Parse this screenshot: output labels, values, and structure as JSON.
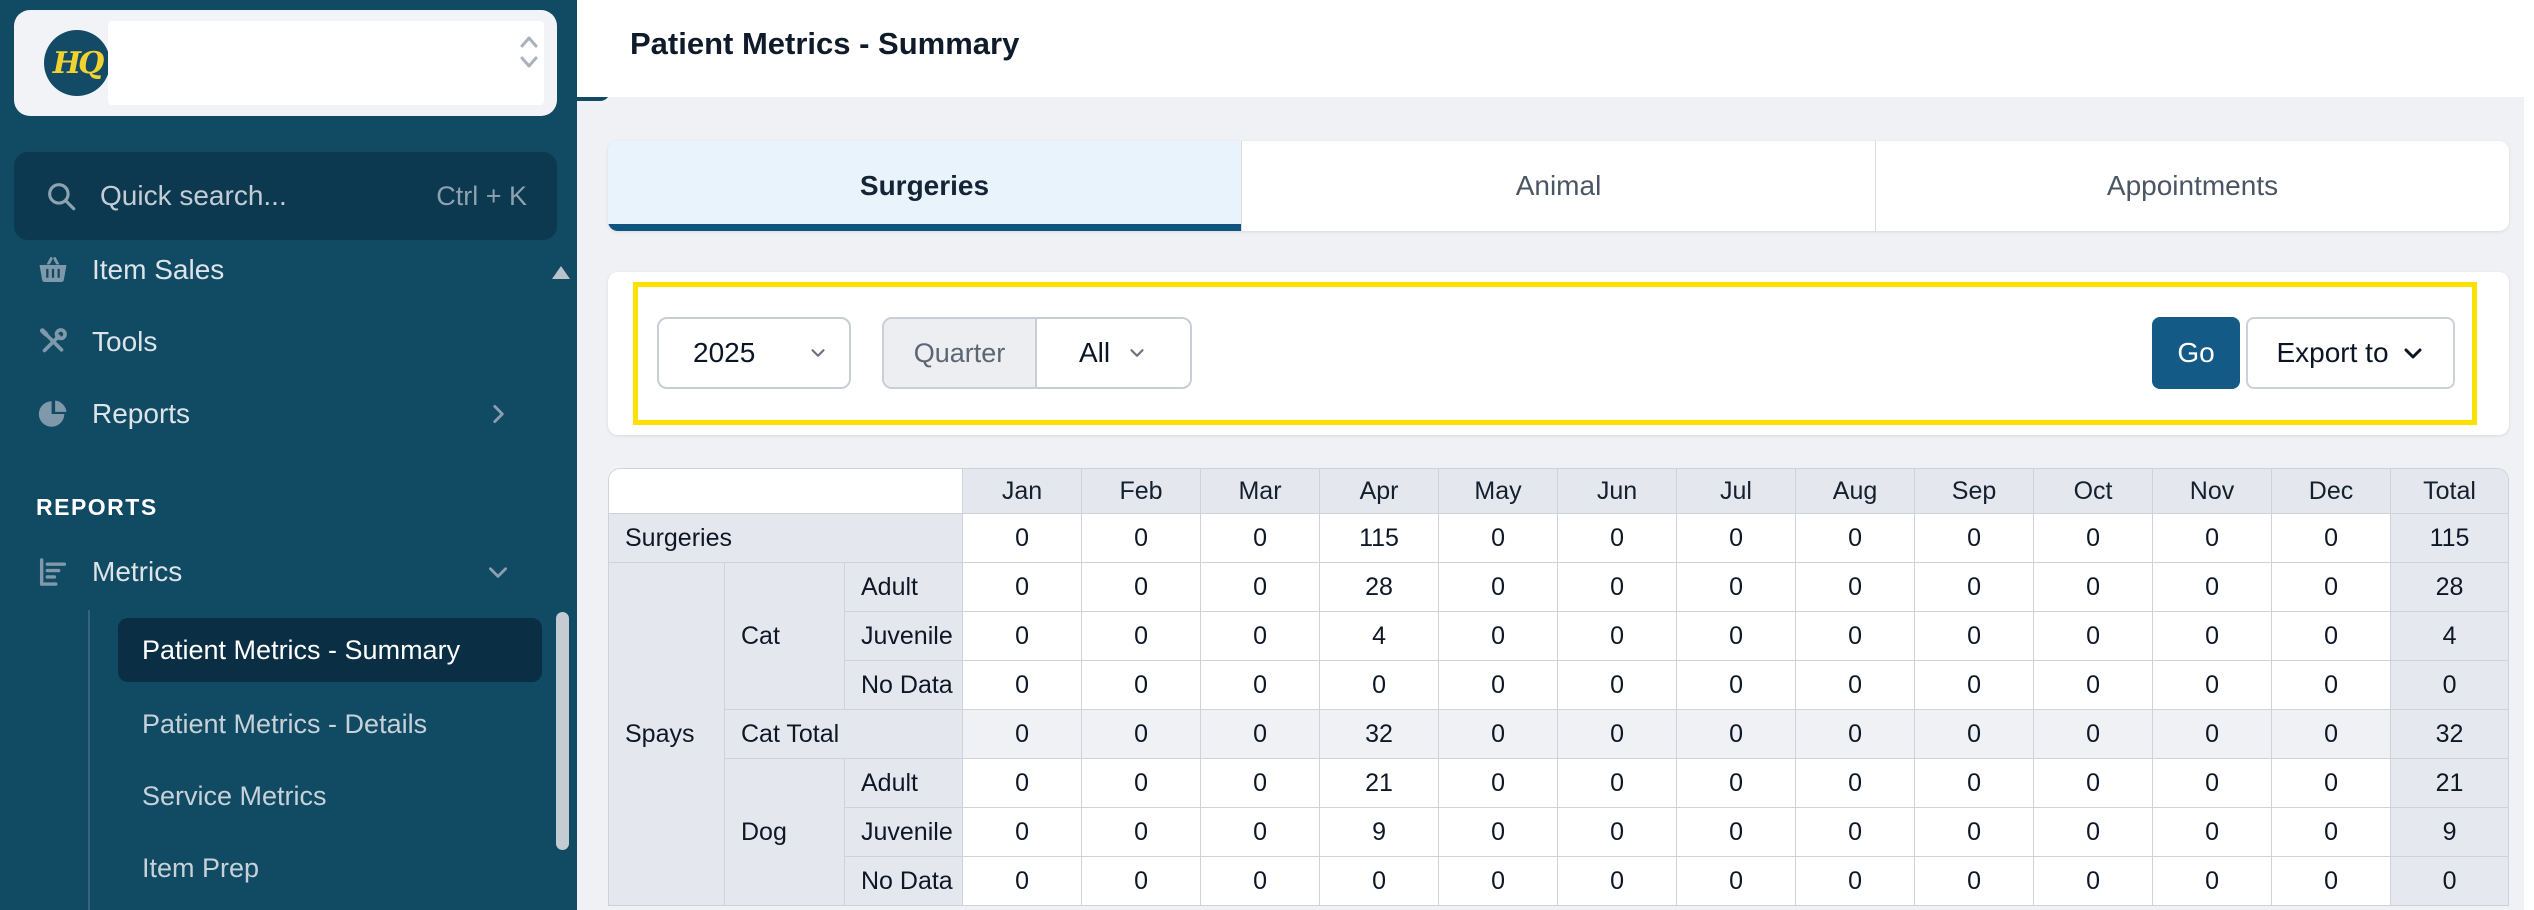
{
  "app": {
    "logo_text": "HQ"
  },
  "colors": {
    "sidebar_navy": "#114a63",
    "selected_item_navy": "#0a2e44",
    "active_tab_blue": "#e9f3fc",
    "tab_underline": "#0f5580",
    "go_button_blue": "#135a86",
    "highlight_yellow": "#ffe000",
    "table_label_gray": "#e5e7ee"
  },
  "sidebar": {
    "workspace_select_value": "",
    "search": {
      "placeholder": "Quick search...",
      "shortcut": "Ctrl + K"
    },
    "nav_items": [
      {
        "label": "Item Sales"
      },
      {
        "label": "Tools"
      },
      {
        "label": "Reports"
      }
    ],
    "section_label": "REPORTS",
    "metrics_group_label": "Metrics",
    "report_links": [
      {
        "label": "Patient Metrics - Summary",
        "active": true
      },
      {
        "label": "Patient Metrics - Details",
        "active": false
      },
      {
        "label": "Service Metrics",
        "active": false
      },
      {
        "label": "Item Prep",
        "active": false
      }
    ]
  },
  "header": {
    "title": "Patient Metrics - Summary"
  },
  "tabs": [
    {
      "label": "Surgeries",
      "active": true
    },
    {
      "label": "Animal",
      "active": false
    },
    {
      "label": "Appointments",
      "active": false
    }
  ],
  "filters": {
    "year_value": "2025",
    "period_label": "Quarter",
    "period_value": "All",
    "go_label": "Go",
    "export_label": "Export to"
  },
  "table": {
    "corner": "",
    "months": [
      "Jan",
      "Feb",
      "Mar",
      "Apr",
      "May",
      "Jun",
      "Jul",
      "Aug",
      "Sep",
      "Oct",
      "Nov",
      "Dec",
      "Total"
    ],
    "rows": [
      {
        "type": "section",
        "labels": [
          {
            "text": "Surgeries",
            "colspan": 3
          }
        ],
        "values": [
          "0",
          "0",
          "0",
          "115",
          "0",
          "0",
          "0",
          "0",
          "0",
          "0",
          "0",
          "0"
        ],
        "total": "115"
      },
      {
        "type": "data",
        "labels": [
          {
            "text": "Spays",
            "rowspan": 7
          },
          {
            "text": "Cat",
            "rowspan": 3
          },
          {
            "text": "Adult"
          }
        ],
        "values": [
          "0",
          "0",
          "0",
          "28",
          "0",
          "0",
          "0",
          "0",
          "0",
          "0",
          "0",
          "0"
        ],
        "total": "28"
      },
      {
        "type": "data",
        "labels": [
          {
            "text": "Juvenile"
          }
        ],
        "values": [
          "0",
          "0",
          "0",
          "4",
          "0",
          "0",
          "0",
          "0",
          "0",
          "0",
          "0",
          "0"
        ],
        "total": "4"
      },
      {
        "type": "data",
        "labels": [
          {
            "text": "No Data"
          }
        ],
        "values": [
          "0",
          "0",
          "0",
          "0",
          "0",
          "0",
          "0",
          "0",
          "0",
          "0",
          "0",
          "0"
        ],
        "total": "0"
      },
      {
        "type": "subtotal",
        "labels": [
          {
            "text": "Cat Total",
            "colspan": 2
          }
        ],
        "values": [
          "0",
          "0",
          "0",
          "32",
          "0",
          "0",
          "0",
          "0",
          "0",
          "0",
          "0",
          "0"
        ],
        "total": "32"
      },
      {
        "type": "data",
        "labels": [
          {
            "text": "Dog",
            "rowspan": 3
          },
          {
            "text": "Adult"
          }
        ],
        "values": [
          "0",
          "0",
          "0",
          "21",
          "0",
          "0",
          "0",
          "0",
          "0",
          "0",
          "0",
          "0"
        ],
        "total": "21"
      },
      {
        "type": "data",
        "labels": [
          {
            "text": "Juvenile"
          }
        ],
        "values": [
          "0",
          "0",
          "0",
          "9",
          "0",
          "0",
          "0",
          "0",
          "0",
          "0",
          "0",
          "0"
        ],
        "total": "9"
      },
      {
        "type": "data",
        "labels": [
          {
            "text": "No Data"
          }
        ],
        "values": [
          "0",
          "0",
          "0",
          "0",
          "0",
          "0",
          "0",
          "0",
          "0",
          "0",
          "0",
          "0"
        ],
        "total": "0"
      }
    ]
  }
}
